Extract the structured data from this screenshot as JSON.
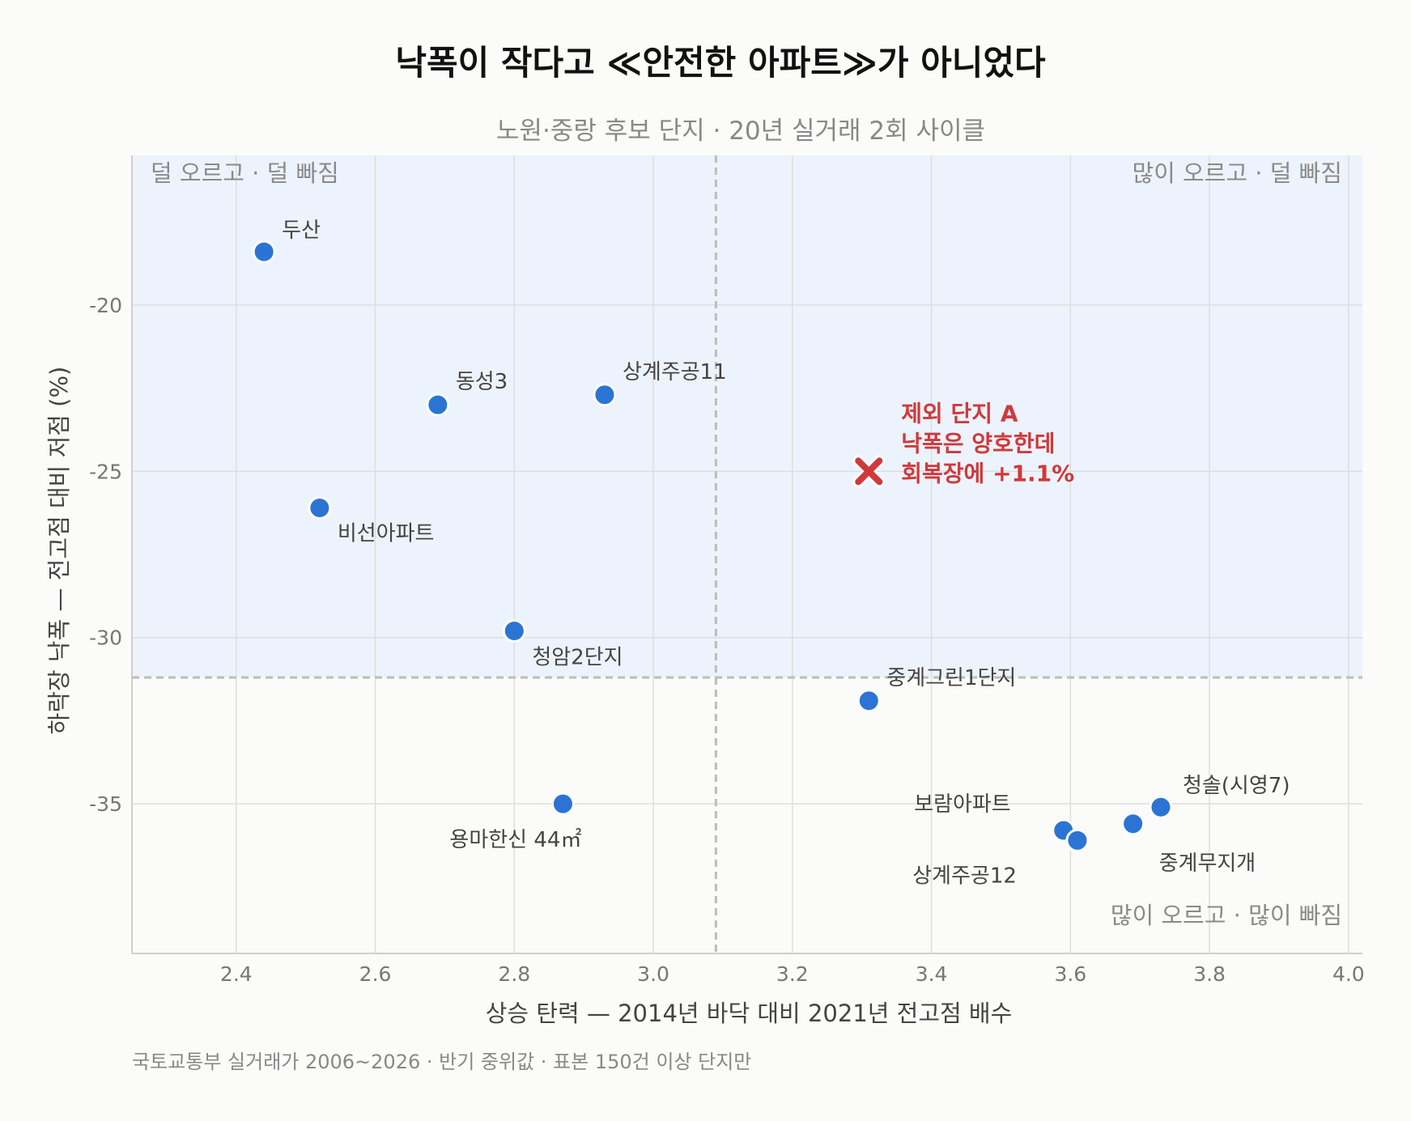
{
  "title": "낙폭이 작다고 ≪안전한 아파트≫가 아니었다",
  "subtitle": "노원·중랑 후보 단지 · 20년 실거래 2회 사이클",
  "source": "국토교통부 실거래가 2006~2026 · 반기 중위값 · 표본 150건 이상 단지만",
  "quadrants": {
    "top_left": "덜 오르고 · 덜 빠짐",
    "top_right": "많이 오르고 · 덜 빠짐",
    "bottom_right": "많이 오르고 · 많이 빠짐"
  },
  "colors": {
    "point": "#2b74d4",
    "excluded": "#d0393b",
    "shade": "#edf3fc",
    "grid": "#dedede",
    "refline": "#bdbdb8"
  },
  "chart_data": {
    "type": "scatter",
    "xlabel": "상승 탄력  —  2014년 바닥 대비 2021년 전고점 배수",
    "ylabel": "하락장 낙폭  —  전고점 대비 저점 (%)",
    "xlim": [
      2.25,
      4.02
    ],
    "ylim": [
      -39.5,
      -15.5
    ],
    "xticks": [
      2.4,
      2.6,
      2.8,
      3.0,
      3.2,
      3.4,
      3.6,
      3.8,
      4.0
    ],
    "xtick_labels": [
      "2.4",
      "2.6",
      "2.8",
      "3.0",
      "3.2",
      "3.4",
      "3.6",
      "3.8",
      "4.0"
    ],
    "yticks": [
      -20,
      -25,
      -30,
      -35
    ],
    "ytick_labels": [
      "-20",
      "-25",
      "-30",
      "-35"
    ],
    "grid": true,
    "reference_lines": {
      "x": 3.09,
      "y": -31.2
    },
    "shaded_region": "above the horizontal reference line",
    "points": [
      {
        "label": "두산",
        "x": 2.44,
        "y": -18.4
      },
      {
        "label": "동성3",
        "x": 2.69,
        "y": -23.0
      },
      {
        "label": "상계주공11",
        "x": 2.93,
        "y": -22.7
      },
      {
        "label": "비선아파트",
        "x": 2.52,
        "y": -26.1
      },
      {
        "label": "청암2단지",
        "x": 2.8,
        "y": -29.8
      },
      {
        "label": "중계그린1단지",
        "x": 3.31,
        "y": -31.9
      },
      {
        "label": "용마한신 44㎡",
        "x": 2.87,
        "y": -35.0
      },
      {
        "label": "보람아파트",
        "x": 3.59,
        "y": -35.8
      },
      {
        "label": "상계주공12",
        "x": 3.61,
        "y": -36.1
      },
      {
        "label": "중계무지개",
        "x": 3.69,
        "y": -35.6
      },
      {
        "label": "청솔(시영7)",
        "x": 3.73,
        "y": -35.1
      }
    ],
    "excluded_point": {
      "x": 3.31,
      "y": -25.0,
      "label_lines": [
        "제외 단지 A",
        "낙폭은 양호한데",
        "회복장에 +1.1%"
      ]
    }
  }
}
